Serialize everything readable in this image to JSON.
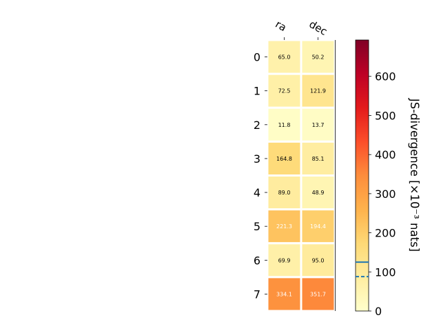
{
  "chart_data": {
    "type": "heatmap",
    "title": "",
    "x_tick_labels": [
      "ra",
      "dec"
    ],
    "y_tick_labels": [
      "0",
      "1",
      "2",
      "3",
      "4",
      "5",
      "6",
      "7"
    ],
    "values": [
      [
        65.0,
        50.2
      ],
      [
        72.5,
        121.9
      ],
      [
        11.8,
        13.7
      ],
      [
        164.8,
        85.1
      ],
      [
        89.0,
        48.9
      ],
      [
        221.3,
        194.4
      ],
      [
        69.9,
        95.0
      ],
      [
        334.1,
        351.7
      ]
    ],
    "cell_labels": [
      [
        "65.0",
        "50.2"
      ],
      [
        "72.5",
        "121.9"
      ],
      [
        "11.8",
        "13.7"
      ],
      [
        "164.8",
        "85.1"
      ],
      [
        "89.0",
        "48.9"
      ],
      [
        "221.3",
        "194.4"
      ],
      [
        "69.9",
        "95.0"
      ],
      [
        "334.1",
        "351.7"
      ]
    ],
    "colormap": "YlOrRd",
    "colorbar": {
      "label": "JS-divergence [×10⁻³ nats]",
      "range": [
        0,
        693
      ],
      "ticks": [
        0,
        100,
        200,
        300,
        400,
        500,
        600
      ],
      "tick_labels": [
        "0",
        "100",
        "200",
        "300",
        "400",
        "500",
        "600"
      ],
      "solid_line_value": 125,
      "dashed_line_value": 88,
      "line_color": "#1f77b4"
    },
    "grid": false
  }
}
